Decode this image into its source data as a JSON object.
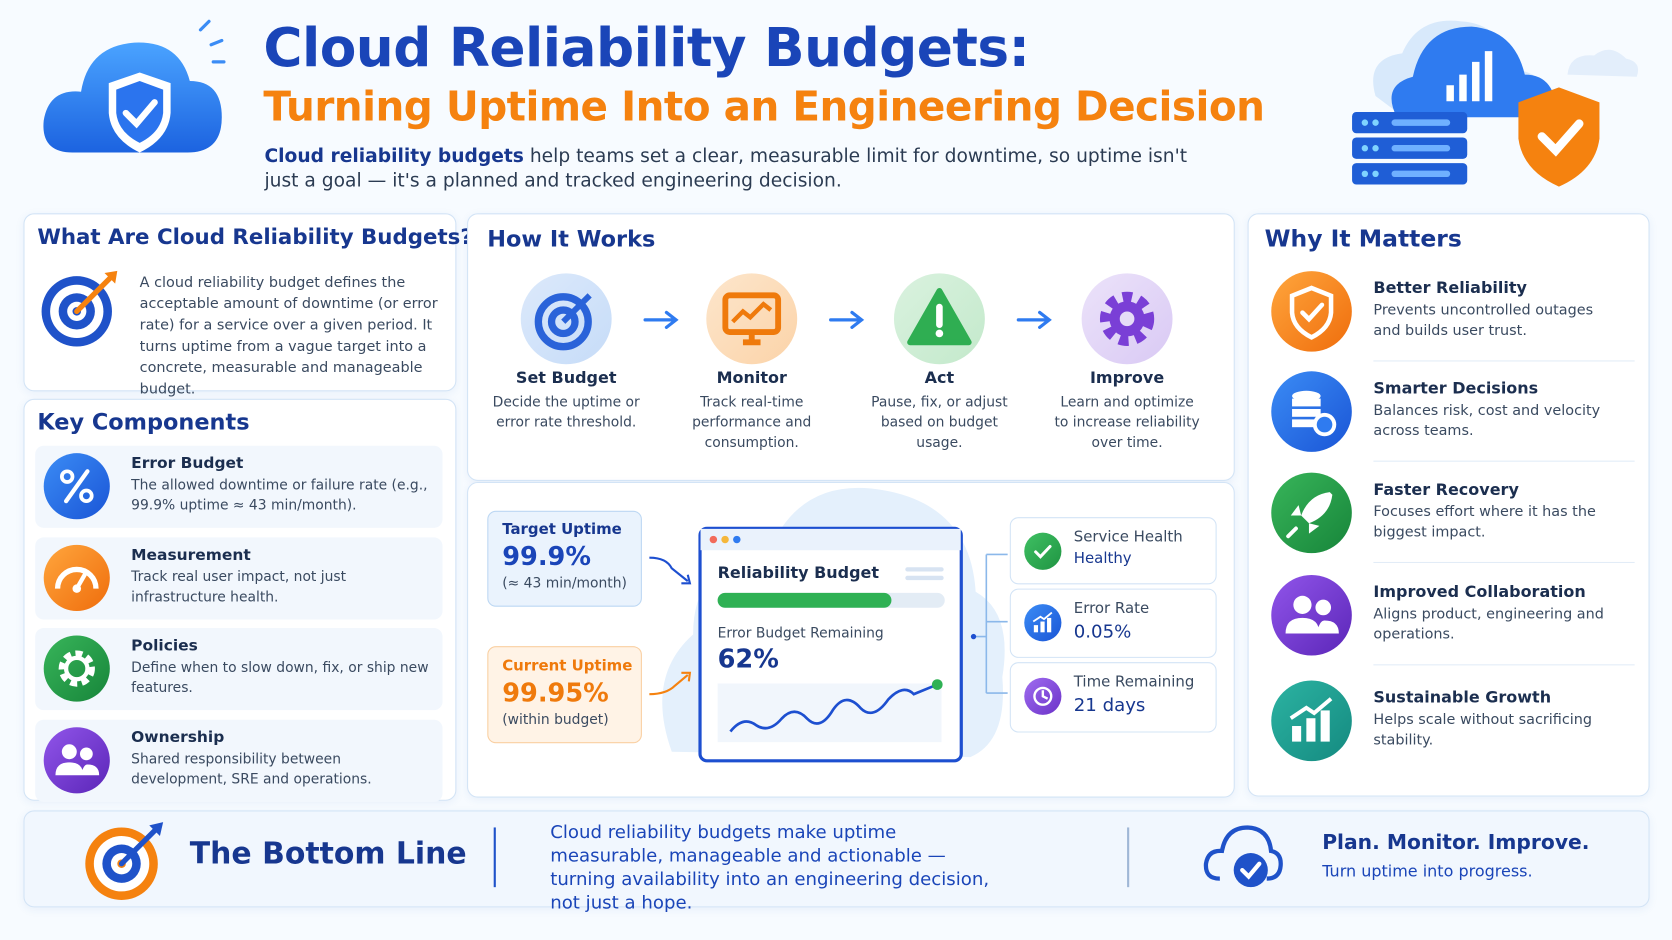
{
  "header": {
    "title": "Cloud Reliability Budgets:",
    "subtitle": "Turning Uptime Into an Engineering Decision",
    "intro_bold": "Cloud reliability budgets",
    "intro_rest": "help teams set a clear, measurable limit for downtime, so uptime isn't just a goal — it's a planned and tracked engineering decision."
  },
  "what_are": {
    "title": "What Are Cloud Reliability Budgets?",
    "text": "A cloud reliability budget defines the acceptable amount of downtime (or error rate) for a service over a given period. It turns uptime from a vague target into a concrete, measurable and manageable budget."
  },
  "key_components": {
    "title": "Key Components",
    "items": [
      {
        "title": "Error Budget",
        "text": "The allowed downtime or failure rate (e.g., 99.9% uptime ≈ 43 min/month)."
      },
      {
        "title": "Measurement",
        "text": "Track real user impact, not just infrastructure health."
      },
      {
        "title": "Policies",
        "text": "Define when to slow down, fix, or ship new features."
      },
      {
        "title": "Ownership",
        "text": "Shared responsibility between development, SRE and operations."
      }
    ]
  },
  "how_it_works": {
    "title": "How It Works",
    "steps": [
      {
        "title": "Set Budget",
        "text": "Decide the uptime or error rate threshold."
      },
      {
        "title": "Monitor",
        "text": "Track real-time performance and consumption."
      },
      {
        "title": "Act",
        "text": "Pause, fix, or adjust based on budget usage."
      },
      {
        "title": "Improve",
        "text": "Learn and optimize to increase reliability over time."
      }
    ]
  },
  "dashboard": {
    "target": {
      "label": "Target Uptime",
      "value": "99.9%",
      "note": "(≈ 43 min/month)"
    },
    "current": {
      "label": "Current Uptime",
      "value": "99.95%",
      "note": "(within budget)"
    },
    "panel": {
      "title": "Reliability Budget",
      "remaining_label": "Error Budget Remaining",
      "remaining_value": "62%"
    },
    "stats": [
      {
        "label": "Service Health",
        "value": "Healthy"
      },
      {
        "label": "Error Rate",
        "value": "0.05%"
      },
      {
        "label": "Time Remaining",
        "value": "21 days"
      }
    ]
  },
  "why_it_matters": {
    "title": "Why It Matters",
    "items": [
      {
        "title": "Better Reliability",
        "text": "Prevents uncontrolled outages and builds user trust."
      },
      {
        "title": "Smarter Decisions",
        "text": "Balances risk, cost and velocity across teams."
      },
      {
        "title": "Faster Recovery",
        "text": "Focuses effort where it has the biggest impact."
      },
      {
        "title": "Improved Collaboration",
        "text": "Aligns product, engineering and operations."
      },
      {
        "title": "Sustainable Growth",
        "text": "Helps scale without sacrificing stability."
      }
    ]
  },
  "bottom_line": {
    "title": "The Bottom Line",
    "text": "Cloud reliability budgets make uptime measurable, manageable and actionable — turning availability into an engineering decision, not just a hope.",
    "tagline_title": "Plan. Monitor. Improve.",
    "tagline_text": "Turn uptime into progress."
  }
}
